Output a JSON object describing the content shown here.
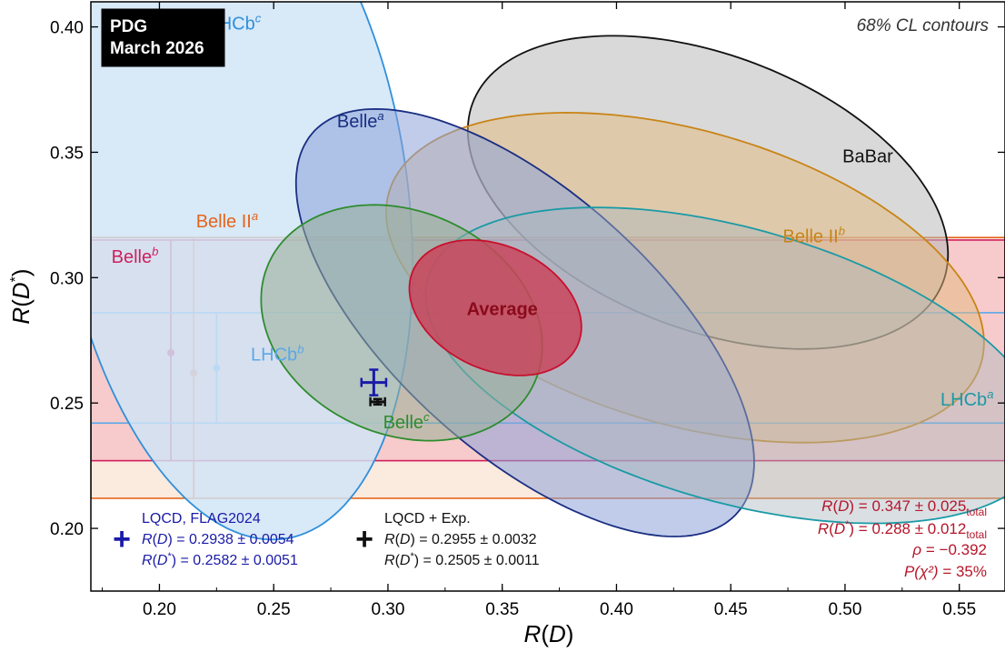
{
  "chart_data": {
    "type": "contour",
    "badge": [
      "PDG",
      "March 2026"
    ],
    "note": "68% CL contours",
    "xlabel": "R(D)",
    "ylabel": "R(D*)",
    "xlim": [
      0.17,
      0.57
    ],
    "ylim": [
      0.175,
      0.41
    ],
    "xticks": [
      0.2,
      0.25,
      0.3,
      0.35,
      0.4,
      0.45,
      0.5,
      0.55
    ],
    "yticks": [
      0.2,
      0.25,
      0.3,
      0.35,
      0.4
    ],
    "ellipses": [
      {
        "name": "LHCb^c",
        "text": "LHCb",
        "sup": "c",
        "cx": 0.232,
        "cy": 0.336,
        "a": 0.142,
        "b": 0.076,
        "angle": -80,
        "fill": "#cfe4f7",
        "stroke": "#2f8fdc",
        "opacity": 0.82,
        "label_x": 0.233,
        "label_y": 0.399,
        "label_color": "#2f8fdc",
        "label_anchor": "middle"
      },
      {
        "name": "BaBar",
        "text": "BaBar",
        "sup": "",
        "cx": 0.44,
        "cy": 0.334,
        "a": 0.109,
        "b": 0.0553,
        "angle": -18,
        "fill": "#b9b9b9",
        "stroke": "#111111",
        "opacity": 0.55,
        "label_x": 0.521,
        "label_y": 0.346,
        "label_color": "#111111",
        "label_anchor": "end"
      },
      {
        "name": "Belle II^b",
        "text": "Belle II",
        "sup": "b",
        "cx": 0.43,
        "cy": 0.3,
        "a": 0.134,
        "b": 0.059,
        "angle": -14,
        "fill": "#e3b97d",
        "stroke": "#c98416",
        "opacity": 0.5,
        "label_x": 0.5,
        "label_y": 0.314,
        "label_color": "#c98416",
        "label_anchor": "end"
      },
      {
        "name": "Belle^a",
        "text": "Belle",
        "sup": "a",
        "cx": 0.36,
        "cy": 0.282,
        "a": 0.12,
        "b": 0.054,
        "angle": -38,
        "fill": "#8da3d8",
        "stroke": "#1a2e82",
        "opacity": 0.55,
        "label_x": 0.288,
        "label_y": 0.36,
        "label_color": "#1a2e82",
        "label_anchor": "middle"
      },
      {
        "name": "LHCb^a",
        "text": "LHCb",
        "sup": "a",
        "cx": 0.452,
        "cy": 0.265,
        "a": 0.139,
        "b": 0.0549,
        "angle": -14,
        "fill": "#aab9be",
        "stroke": "#1a9aa5",
        "opacity": 0.45,
        "label_x": 0.565,
        "label_y": 0.249,
        "label_color": "#1a9aa5",
        "label_anchor": "end"
      },
      {
        "name": "Belle^c",
        "text": "Belle",
        "sup": "c",
        "cx": 0.306,
        "cy": 0.282,
        "a": 0.063,
        "b": 0.045,
        "angle": -18,
        "fill": "#98ae98",
        "stroke": "#2e8c2e",
        "opacity": 0.55,
        "label_x": 0.308,
        "label_y": 0.24,
        "label_color": "#2e8c2e",
        "label_anchor": "middle"
      },
      {
        "name": "Average",
        "text": "Average",
        "sup": "",
        "cx": 0.347,
        "cy": 0.288,
        "a": 0.039,
        "b": 0.025,
        "angle": -20,
        "fill": "#c8455c",
        "stroke": "#c8102e",
        "opacity": 0.85,
        "label_x": 0.35,
        "label_y": 0.285,
        "label_color": "#8b0a1a",
        "label_anchor": "middle",
        "label_bold": true
      }
    ],
    "bands": [
      {
        "name": "Belle II^a",
        "text": "Belle II",
        "sup": "a",
        "x": 0.215,
        "y": 0.262,
        "ylo": 0.212,
        "yhi": 0.316,
        "fill": "#f8d9c2",
        "stroke": "#e4651b",
        "opacity": 0.55,
        "label_x": 0.216,
        "label_y": 0.32,
        "label_color": "#e4651b"
      },
      {
        "name": "Belle^b",
        "text": "Belle",
        "sup": "b",
        "x": 0.205,
        "y": 0.27,
        "ylo": 0.227,
        "yhi": 0.315,
        "fill": "#f2a6b4",
        "stroke": "#cf1f5e",
        "opacity": 0.45,
        "label_x": 0.179,
        "label_y": 0.306,
        "label_color": "#cf1f5e"
      },
      {
        "name": "LHCb^b",
        "text": "LHCb",
        "sup": "b",
        "x": 0.225,
        "y": 0.264,
        "ylo": 0.242,
        "yhi": 0.286,
        "fill": "none",
        "stroke": "#5aa8e8",
        "opacity": 1,
        "label_x": 0.24,
        "label_y": 0.267,
        "label_color": "#5aa8e8"
      }
    ],
    "sm_points": [
      {
        "name": "LQCD, FLAG2024",
        "rd": 0.2938,
        "rd_err": 0.0054,
        "rds": 0.2582,
        "rds_err": 0.0051,
        "color": "#1a1aa8"
      },
      {
        "name": "LQCD + Exp.",
        "rd": 0.2955,
        "rd_err": 0.0032,
        "rds": 0.2505,
        "rds_err": 0.0011,
        "color": "#111111"
      }
    ],
    "legend": [
      {
        "title": "LQCD, FLAG2024",
        "line1_pre": "R(D) = ",
        "line1_val": "0.2938 ± 0.0054",
        "line2_pre": "R(D*) = ",
        "line2_val": "0.2582 ± 0.0051",
        "color": "#1a1aa8"
      },
      {
        "title": "LQCD + Exp.",
        "line1_pre": "R(D) = ",
        "line1_val": "0.2955 ± 0.0032",
        "line2_pre": "R(D*) = ",
        "line2_val": "0.2505 ± 0.0011",
        "color": "#111111"
      }
    ],
    "results": {
      "rd_label": "R(D)",
      "rd_value": "= 0.347 ± 0.025",
      "rd_sub": "total",
      "rds_label": "R(D*)",
      "rds_value": "= 0.288 ± 0.012",
      "rds_sub": "total",
      "rho_label": "ρ",
      "rho_value": "= −0.392",
      "p_label": "P(χ²)",
      "p_value": "= 35%"
    }
  }
}
